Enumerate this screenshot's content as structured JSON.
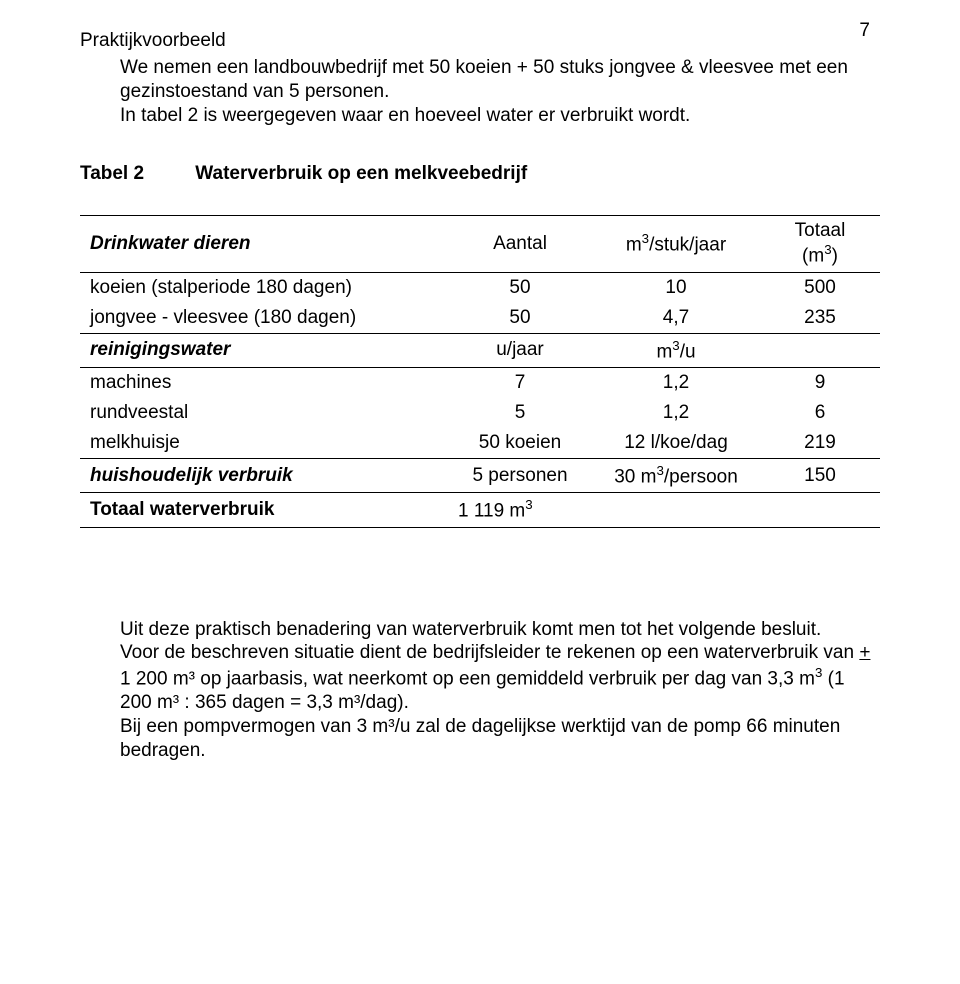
{
  "page_number": "7",
  "section_title": "Praktijkvoorbeeld",
  "intro_line1": "We nemen een landbouwbedrijf met 50 koeien + 50 stuks jongvee & vleesvee met een gezinstoestand van 5 personen.",
  "intro_line2": "In tabel 2 is weergegeven waar en hoeveel water er verbruikt wordt.",
  "table": {
    "caption_no": "Tabel 2",
    "caption_title": "Waterverbruik op een melkveebedrijf",
    "h_drinkwater": "Drinkwater dieren",
    "h_aantal": "Aantal",
    "h_m3stuk": "m",
    "h_m3stuk_sup": "3",
    "h_m3stuk_tail": "/stuk/jaar",
    "h_totaal_line1": "Totaal",
    "h_totaal_line2a": "(m",
    "h_totaal_line2sup": "3",
    "h_totaal_line2b": ")",
    "r1_label": "koeien (stalperiode 180 dagen)",
    "r1_a": "50",
    "r1_b": "10",
    "r1_c": "500",
    "r2_label": "jongvee - vleesvee (180 dagen)",
    "r2_a": "50",
    "r2_b": "4,7",
    "r2_c": "235",
    "h_rein": "reinigingswater",
    "h_rein_b": "u/jaar",
    "h_rein_c1": "m",
    "h_rein_csup": "3",
    "h_rein_c2": "/u",
    "r3_label": "machines",
    "r3_a": "7",
    "r3_b": "1,2",
    "r3_c": "9",
    "r4_label": "rundveestal",
    "r4_a": "5",
    "r4_b": "1,2",
    "r4_c": "6",
    "r5_label": "melkhuisje",
    "r5_a": "50 koeien",
    "r5_b": "12 l/koe/dag",
    "r5_c": "219",
    "h_huis": "huishoudelijk verbruik",
    "r6_a": "5 personen",
    "r6_b1": "30 m",
    "r6_bsup": "3",
    "r6_b2": "/persoon",
    "r6_c": "150",
    "r7_label": "Totaal waterverbruik",
    "r7_a1": "1 119 m",
    "r7_asup": "3"
  },
  "closing": {
    "l1": "Uit deze praktisch benadering van waterverbruik komt men tot het volgende besluit.",
    "l2a": "Voor de beschreven situatie dient de bedrijfsleider te rekenen op een waterverbruik van ",
    "l2u": "+",
    "l2b": " 1 200 m³ op jaarbasis, wat neerkomt op een gemiddeld verbruik per dag van 3,3 m",
    "l2sup": "3",
    "l2c": "  (1 200 m³ : 365 dagen = 3,3 m³/dag).",
    "l3": "Bij een pompvermogen van 3 m³/u zal de dagelijkse werktijd van de pomp 66 minuten bedragen."
  }
}
